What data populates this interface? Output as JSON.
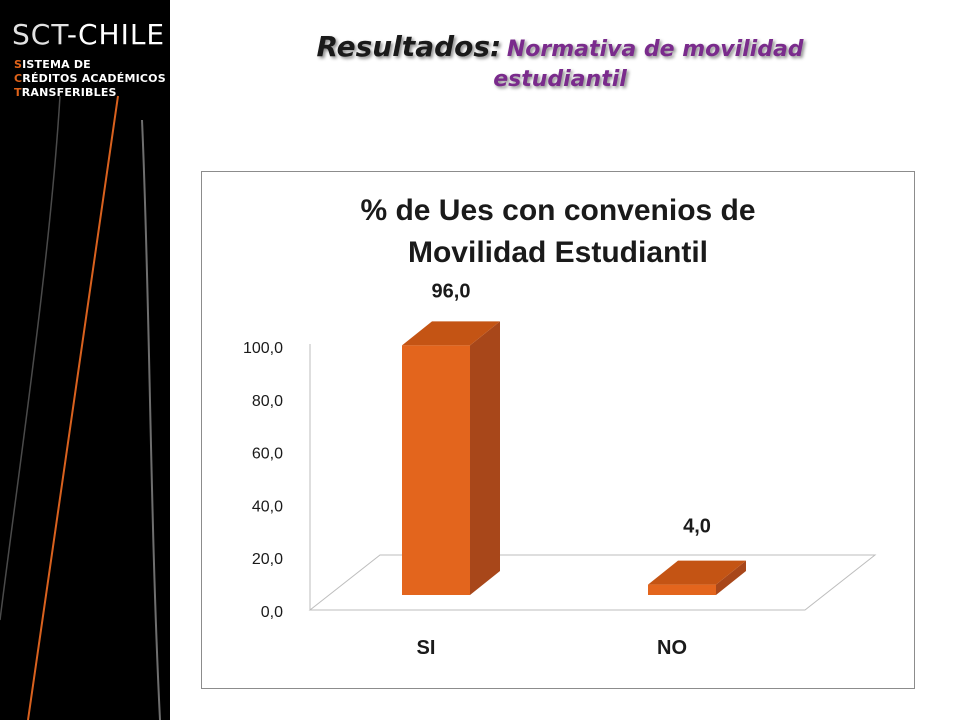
{
  "logo": {
    "name_part1": "SCT",
    "name_part2": "-CHILE",
    "lines": [
      {
        "initial": "S",
        "rest": "ISTEMA DE"
      },
      {
        "initial": "C",
        "rest": "RÉDITOS ACADÉMICOS"
      },
      {
        "initial": "T",
        "rest": "RANSFERIBLES"
      }
    ]
  },
  "slide": {
    "title_main": "Resultados:",
    "title_sub_line1": "Normativa de movilidad",
    "title_sub_line2": "estudiantil"
  },
  "colors": {
    "bar_front": "#E3651D",
    "bar_side": "#A8471A",
    "bar_top": "#C45414",
    "subtitle": "#7a2b8c",
    "accent": "#e0631a"
  },
  "chart_data": {
    "type": "bar",
    "title_line1": "% de Ues  con convenios de",
    "title_line2": "Movilidad Estudiantil",
    "categories": [
      "SI",
      "NO"
    ],
    "values": [
      96.0,
      4.0
    ],
    "data_labels": [
      "96,0",
      "4,0"
    ],
    "ylim": [
      0,
      100
    ],
    "yticks": [
      "0,0",
      "20,0",
      "40,0",
      "60,0",
      "80,0",
      "100,0"
    ],
    "ytick_values": [
      0,
      20,
      40,
      60,
      80,
      100
    ],
    "style": "3d",
    "legend": "none",
    "grid": false
  }
}
